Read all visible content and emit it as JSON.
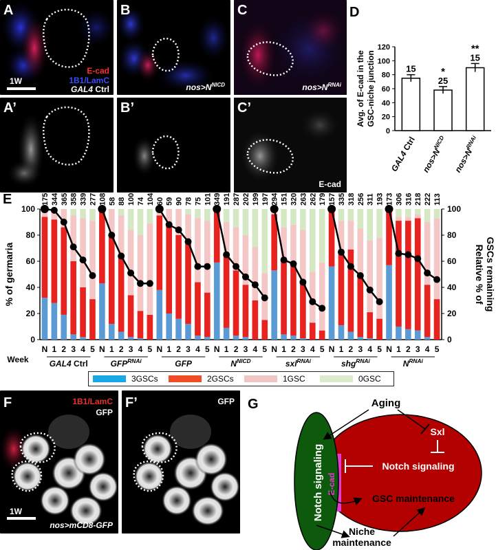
{
  "figure": {
    "panel_labels": {
      "A": "A",
      "B": "B",
      "C": "C",
      "A2": "A’",
      "B2": "B’",
      "C2": "C’",
      "D": "D",
      "E": "E",
      "F": "F",
      "F2": "F’",
      "G": "G"
    },
    "top_micro": {
      "A_legend_ecad": "E-cad",
      "A_legend_1b1": "1B1/LamC",
      "A_scale": "1W",
      "A_genotype_main": "GAL4",
      "A_genotype_suffix": " Ctrl",
      "B_genotype_main": "nos>N",
      "B_genotype_sup": "NICD",
      "C_genotype_main": "nos>N",
      "C_genotype_sup": "RNAi",
      "C2_label": "E-cad"
    },
    "bottom_micro": {
      "F_legend_1": "1B1/LamC",
      "F_legend_2": "GFP",
      "F2_legend": "GFP",
      "F_scale": "1W",
      "F_genotype": "nos>mCD8-GFP"
    },
    "diagram": {
      "aging": "Aging",
      "sxl": "Sxl",
      "notch_inner": "Notch signaling",
      "notch_niche": "Notch signaling",
      "ecad": "E-cad",
      "gsc_maint": "GSC maintenance",
      "niche_maint_1": "Niche",
      "niche_maint_2": "maintenance",
      "colors": {
        "niche": "#0d5a0d",
        "gsc": "#b30000",
        "ecad": "#e33ccf"
      }
    }
  },
  "chart_data": [
    {
      "panel": "D",
      "type": "bar",
      "ylabel_line1": "Avg. of E-cad in the",
      "ylabel_line2": "GSC-niche junction",
      "ylim": [
        0,
        120
      ],
      "yticks": [
        0,
        20,
        40,
        60,
        80,
        100,
        120
      ],
      "categories": [
        {
          "main": "GAL4",
          "suffix": " Ctrl",
          "sup": ""
        },
        {
          "main": "nos>N",
          "suffix": "",
          "sup": "NICD"
        },
        {
          "main": "nos>N",
          "suffix": "",
          "sup": "RNAi"
        }
      ],
      "values": [
        75,
        58,
        90
      ],
      "errors": [
        5,
        5,
        6
      ],
      "n_labels": [
        "15",
        "25",
        "15"
      ],
      "sig_labels": [
        "",
        "*",
        "**"
      ]
    },
    {
      "panel": "E",
      "type": "bar",
      "stacked": true,
      "ylabel_left": "% of germaria",
      "ylabel_right_line1": "Relative % of",
      "ylabel_right_line2": "GSCs remaining",
      "xlabel": "Week",
      "ylim": [
        0,
        100
      ],
      "yticks": [
        0,
        20,
        40,
        60,
        80,
        100
      ],
      "week_labels": [
        "N",
        "1",
        "2",
        "3",
        "4",
        "5"
      ],
      "series_names": [
        "3GSCs",
        "2GSCs",
        "1GSC",
        "0GSC"
      ],
      "series_colors": [
        "#5b9bd5",
        "#e8231f",
        "#f4c6c6",
        "#d5e8c4"
      ],
      "legend_colors": [
        "#1aa7e8",
        "#f04c26",
        "#f2c5c5",
        "#dcebcb"
      ],
      "groups": [
        {
          "main": "GAL4",
          "suffix": " Ctrl",
          "sup": "",
          "n": [
            "175",
            "344",
            "365",
            "358",
            "339",
            "277"
          ],
          "three": [
            32,
            28,
            19,
            4,
            2,
            0
          ],
          "two": [
            62,
            64,
            67,
            56,
            38,
            31
          ],
          "one": [
            6,
            8,
            14,
            35,
            53,
            60
          ],
          "line": [
            100,
            99,
            90,
            71,
            61,
            49
          ]
        },
        {
          "main": "GFP",
          "suffix": "",
          "sup": "RNAi",
          "n": [
            "108",
            "58",
            "88",
            "100",
            "74",
            "104"
          ],
          "three": [
            43,
            12,
            6,
            2,
            1,
            0
          ],
          "two": [
            55,
            67,
            57,
            32,
            21,
            19
          ],
          "one": [
            2,
            21,
            32,
            50,
            58,
            70
          ],
          "line": [
            100,
            80,
            64,
            51,
            43,
            43
          ]
        },
        {
          "main": "GFP",
          "suffix": "",
          "sup": "",
          "n": [
            "60",
            "59",
            "90",
            "78",
            "75",
            "101"
          ],
          "three": [
            38,
            20,
            16,
            12,
            3,
            2
          ],
          "two": [
            57,
            68,
            64,
            63,
            41,
            34
          ],
          "one": [
            5,
            12,
            20,
            21,
            49,
            55
          ],
          "line": [
            100,
            88,
            84,
            75,
            56,
            56
          ]
        },
        {
          "main": "N",
          "suffix": "",
          "sup": "NICD",
          "n": [
            "349",
            "191",
            "287",
            "202",
            "199",
            "197"
          ],
          "three": [
            59,
            9,
            3,
            2,
            0,
            0
          ],
          "two": [
            41,
            55,
            50,
            40,
            30,
            15
          ],
          "one": [
            0,
            26,
            33,
            38,
            41,
            36
          ],
          "line": [
            100,
            65,
            56,
            48,
            42,
            32
          ]
        },
        {
          "main": "sxl",
          "suffix": "",
          "sup": "RNAi",
          "n": [
            "294",
            "151",
            "320",
            "263",
            "262",
            "179"
          ],
          "three": [
            53,
            4,
            3,
            1,
            0,
            0
          ],
          "two": [
            43,
            57,
            55,
            43,
            13,
            7
          ],
          "one": [
            4,
            25,
            30,
            40,
            39,
            52
          ],
          "line": [
            100,
            61,
            58,
            44,
            29,
            24
          ]
        },
        {
          "main": "shg",
          "suffix": "",
          "sup": "RNAi",
          "n": [
            "157",
            "335",
            "318",
            "256",
            "311",
            "193"
          ],
          "three": [
            56,
            11,
            6,
            2,
            1,
            0
          ],
          "two": [
            44,
            56,
            63,
            47,
            20,
            16
          ],
          "one": [
            0,
            24,
            22,
            36,
            55,
            62
          ],
          "line": [
            100,
            67,
            56,
            49,
            38,
            29
          ]
        },
        {
          "main": "N",
          "suffix": "",
          "sup": "RNAi",
          "n": [
            "173",
            "306",
            "316",
            "218",
            "222",
            "113"
          ],
          "three": [
            57,
            10,
            8,
            7,
            2,
            0
          ],
          "two": [
            43,
            81,
            83,
            86,
            40,
            31
          ],
          "one": [
            0,
            3,
            3,
            3,
            48,
            62
          ],
          "line": [
            100,
            66,
            65,
            62,
            51,
            46
          ]
        }
      ]
    }
  ]
}
